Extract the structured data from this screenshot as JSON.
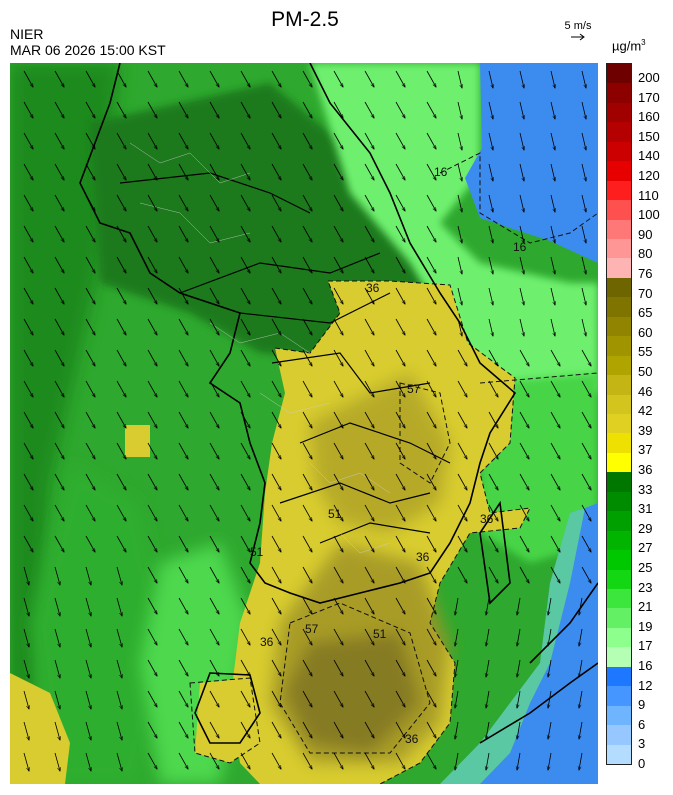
{
  "header": {
    "agency": "NIER",
    "timestamp": "MAR 06 2026 15:00 KST",
    "title": "PM-2.5",
    "wind_reference": "5 m/s",
    "unit": "µg/m",
    "unit_exp": "3"
  },
  "contour_labels": [
    "36",
    "36",
    "57",
    "51",
    "51",
    "36",
    "36",
    "57",
    "51",
    "36",
    "16",
    "16"
  ],
  "colorbar": {
    "ticks": [
      "200",
      "170",
      "160",
      "150",
      "140",
      "120",
      "110",
      "100",
      "90",
      "80",
      "76",
      "70",
      "65",
      "60",
      "55",
      "50",
      "46",
      "42",
      "39",
      "37",
      "36",
      "33",
      "31",
      "29",
      "27",
      "25",
      "23",
      "21",
      "19",
      "17",
      "16",
      "12",
      "9",
      "6",
      "3",
      "0"
    ],
    "colors": [
      "#6e0000",
      "#8c0000",
      "#a00000",
      "#b40000",
      "#cc0000",
      "#e60000",
      "#ff1e1e",
      "#ff5050",
      "#ff7878",
      "#ff9696",
      "#ffb4b4",
      "#6e6400",
      "#807400",
      "#908400",
      "#a09400",
      "#b0a400",
      "#c4b414",
      "#d4c41e",
      "#e0d022",
      "#eee000",
      "#ffff00",
      "#007800",
      "#008c00",
      "#00a000",
      "#00b400",
      "#00c800",
      "#14d714",
      "#3ce63c",
      "#64f064",
      "#8cff8c",
      "#b4ffb4",
      "#1e78ff",
      "#4696ff",
      "#6eb4ff",
      "#96c8ff",
      "#b4dcff"
    ],
    "split_top_index": 11,
    "split_bottom_index": 21,
    "split_16_index": 31
  },
  "colors": {
    "ocean": "#3c8cf0",
    "green_low": "#50dc50",
    "green_mid": "#2ea82e",
    "green_dark": "#1a7a1a",
    "yellow": "#d8cc30",
    "olive": "#a09428",
    "olive_dark": "#7a7022",
    "border": "#000000"
  }
}
